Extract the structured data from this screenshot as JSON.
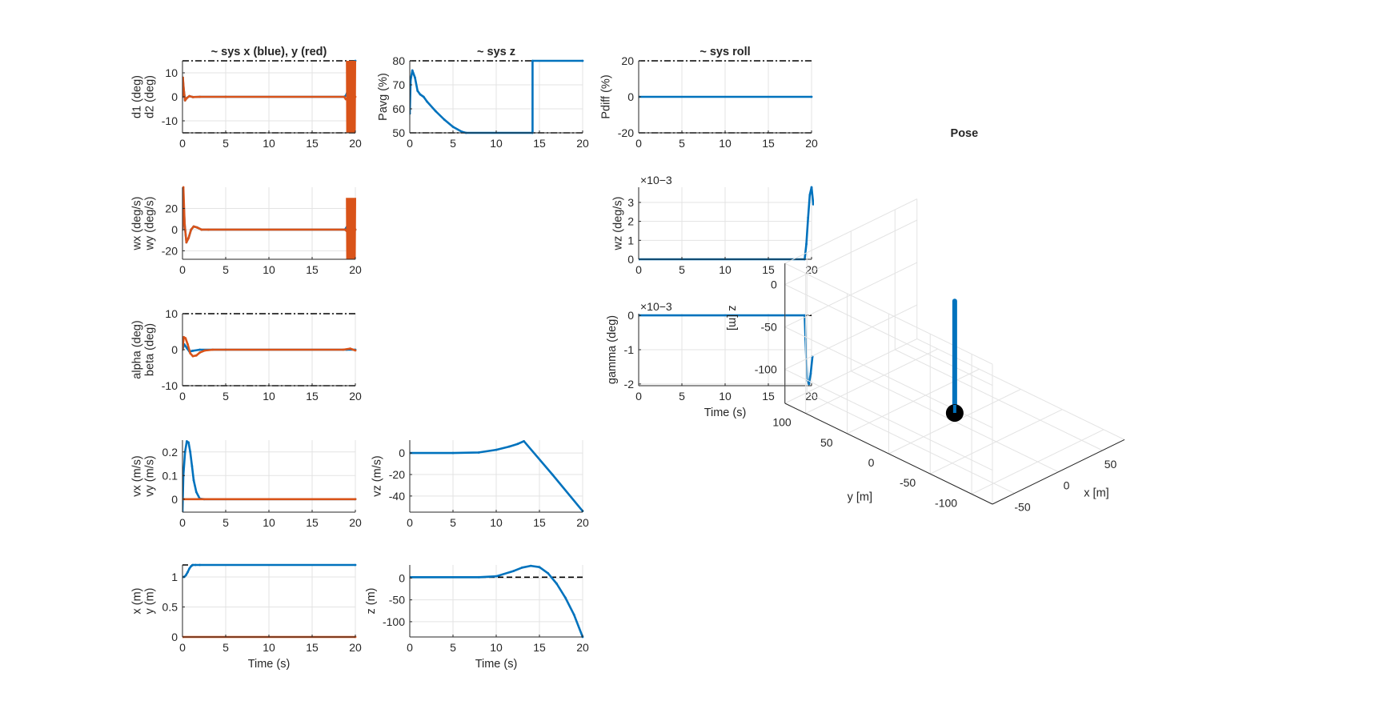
{
  "figure": {
    "background": "#ffffff",
    "colors": {
      "blue": "#0072BD",
      "red": "#D95319",
      "limit": "#000000",
      "grid": "#e3e3e3",
      "axis": "#262626"
    }
  },
  "chart_data": [
    {
      "id": "xy-angle",
      "type": "line",
      "title": "~ sys x (blue), y (red)",
      "xlabel": "",
      "ylabel": [
        "d1 (deg)",
        "d2 (deg)"
      ],
      "xlim": [
        0,
        20
      ],
      "ylim": [
        -15,
        15
      ],
      "xticks": [
        0,
        5,
        10,
        15,
        20
      ],
      "yticks": [
        -10,
        0,
        10
      ],
      "limits": [
        15,
        -15
      ],
      "series": [
        {
          "color": "#0072BD",
          "x": [
            0,
            0.05,
            0.15,
            0.3,
            0.5,
            0.8,
            1.2,
            2,
            5,
            18.7,
            18.9,
            19.3,
            20
          ],
          "y": [
            0,
            7,
            3,
            -1.5,
            -0.5,
            0.3,
            -0.1,
            0,
            0,
            0,
            0.5,
            4,
            15
          ]
        },
        {
          "color": "#D95319",
          "x": [
            0,
            0.05,
            0.15,
            0.3,
            0.5,
            0.8,
            1.2,
            2,
            5,
            18.7,
            18.9,
            19.3,
            20
          ],
          "y": [
            0,
            8,
            3,
            -1.5,
            -0.5,
            0.3,
            -0.1,
            0,
            0,
            0,
            -1,
            0,
            0
          ],
          "band": [
            19.0,
            20.0,
            -15,
            15
          ]
        }
      ]
    },
    {
      "id": "z-throttle",
      "type": "line",
      "title": "~ sys z",
      "xlabel": "",
      "ylabel": [
        "Pavg (%)"
      ],
      "xlim": [
        0,
        20
      ],
      "ylim": [
        50,
        80
      ],
      "xticks": [
        0,
        5,
        10,
        15,
        20
      ],
      "yticks": [
        50,
        60,
        70,
        80
      ],
      "limits": [
        80,
        50
      ],
      "series": [
        {
          "color": "#0072BD",
          "x": [
            0,
            0.1,
            0.3,
            0.6,
            0.9,
            1.2,
            1.6,
            2.0,
            3.0,
            4.0,
            5.0,
            6.0,
            6.5,
            14.2,
            14.2,
            20
          ],
          "y": [
            58,
            72,
            76,
            73,
            67.5,
            66,
            65,
            63,
            59,
            55.5,
            52.5,
            50.5,
            50,
            50,
            80,
            80
          ]
        }
      ]
    },
    {
      "id": "roll-throttle",
      "type": "line",
      "title": "~ sys roll",
      "xlabel": "",
      "ylabel": [
        "Pdiff (%)"
      ],
      "xlim": [
        0,
        20
      ],
      "ylim": [
        -20,
        20
      ],
      "xticks": [
        0,
        5,
        10,
        15,
        20
      ],
      "yticks": [
        -20,
        0,
        20
      ],
      "limits": [
        20,
        -20
      ],
      "series": [
        {
          "color": "#0072BD",
          "x": [
            0,
            20
          ],
          "y": [
            0,
            0
          ]
        }
      ]
    },
    {
      "id": "xy-rate",
      "type": "line",
      "title": "",
      "xlabel": "",
      "ylabel": [
        "wx (deg/s)",
        "wy (deg/s)"
      ],
      "xlim": [
        0,
        20
      ],
      "ylim": [
        -28,
        40
      ],
      "xticks": [
        0,
        5,
        10,
        15,
        20
      ],
      "yticks": [
        -20,
        0,
        20
      ],
      "series": [
        {
          "color": "#0072BD",
          "x": [
            0,
            0.1,
            0.25,
            0.45,
            0.7,
            1.0,
            1.3,
            1.7,
            2.2,
            3,
            18.8,
            19.2,
            20
          ],
          "y": [
            0,
            30,
            5,
            -12,
            -8,
            0,
            3,
            2,
            0,
            0,
            0,
            5,
            0
          ]
        },
        {
          "color": "#D95319",
          "x": [
            0,
            0.1,
            0.25,
            0.45,
            0.7,
            1.0,
            1.3,
            1.7,
            2.2,
            3,
            18.8,
            19.2,
            20
          ],
          "y": [
            0,
            40,
            5,
            -12,
            -8,
            0,
            3,
            2,
            0,
            0,
            0,
            -3,
            0
          ],
          "band": [
            19.0,
            20.0,
            -28,
            30
          ]
        }
      ]
    },
    {
      "id": "yaw-rate",
      "type": "line",
      "title": "",
      "xlabel": "",
      "ylabel": [
        "wz (deg/s)"
      ],
      "exponent": "×10−3",
      "xlim": [
        0,
        20
      ],
      "ylim": [
        0,
        0.0038
      ],
      "xticks": [
        0,
        5,
        10,
        15,
        20
      ],
      "yticks": [
        0,
        0.001,
        0.002,
        0.003
      ],
      "ytick_labels": [
        "0",
        "1",
        "2",
        "3"
      ],
      "series": [
        {
          "color": "#0072BD",
          "x": [
            0,
            19.2,
            19.4,
            19.6,
            19.8,
            20.0,
            20.2
          ],
          "y": [
            0,
            0,
            0.0008,
            0.0022,
            0.0034,
            0.0038,
            0.0029
          ]
        }
      ]
    },
    {
      "id": "incidence",
      "type": "line",
      "title": "",
      "xlabel": "",
      "ylabel": [
        "alpha (deg)",
        "beta (deg)"
      ],
      "xlim": [
        0,
        20
      ],
      "ylim": [
        -10,
        10
      ],
      "xticks": [
        0,
        5,
        10,
        15,
        20
      ],
      "yticks": [
        -10,
        0,
        10
      ],
      "limits": [
        10,
        -10
      ],
      "series": [
        {
          "color": "#0072BD",
          "x": [
            0,
            0.2,
            0.5,
            0.8,
            1.2,
            2,
            5,
            19,
            20
          ],
          "y": [
            0,
            1.5,
            0.5,
            -0.5,
            -0.3,
            0,
            0,
            0,
            0
          ]
        },
        {
          "color": "#D95319",
          "x": [
            0,
            0.15,
            0.35,
            0.6,
            0.9,
            1.2,
            1.6,
            2.0,
            2.6,
            3.5,
            18.6,
            19.4,
            20
          ],
          "y": [
            0,
            3.5,
            3.2,
            1.5,
            -1.0,
            -1.8,
            -1.6,
            -0.8,
            -0.2,
            0,
            0,
            0.3,
            -0.2
          ]
        }
      ]
    },
    {
      "id": "roll-angle",
      "type": "line",
      "title": "",
      "xlabel": "Time (s)",
      "ylabel": [
        "gamma (deg)"
      ],
      "exponent": "×10−3",
      "xlim": [
        0,
        20
      ],
      "ylim": [
        -0.00205,
        5e-05
      ],
      "xticks": [
        0,
        5,
        10,
        15,
        20
      ],
      "yticks": [
        -0.002,
        -0.001,
        0
      ],
      "ytick_labels": [
        "-2",
        "-1",
        "0"
      ],
      "limits": [
        0
      ],
      "series": [
        {
          "color": "#0072BD",
          "x": [
            0,
            19.2,
            19.3,
            19.5,
            19.7,
            19.9,
            20.1
          ],
          "y": [
            0,
            0,
            -0.0007,
            -0.0019,
            -0.002,
            -0.0017,
            -0.0012
          ]
        }
      ]
    },
    {
      "id": "xy-velocity",
      "type": "line",
      "title": "",
      "xlabel": "",
      "ylabel": [
        "vx (m/s)",
        "vy (m/s)"
      ],
      "xlim": [
        0,
        20
      ],
      "ylim": [
        -0.055,
        0.25
      ],
      "xticks": [
        0,
        5,
        10,
        15,
        20
      ],
      "yticks": [
        0,
        0.1,
        0.2
      ],
      "ytick_labels": [
        "0",
        "0.1",
        "0.2"
      ],
      "series": [
        {
          "color": "#0072BD",
          "x": [
            0,
            0.1,
            0.3,
            0.5,
            0.7,
            0.9,
            1.1,
            1.3,
            1.6,
            2.0,
            2.5,
            20
          ],
          "y": [
            -0.05,
            0.1,
            0.2,
            0.245,
            0.24,
            0.2,
            0.14,
            0.08,
            0.03,
            0.002,
            0,
            0
          ]
        },
        {
          "color": "#D95319",
          "x": [
            0,
            20
          ],
          "y": [
            0,
            0
          ]
        }
      ]
    },
    {
      "id": "z-velocity",
      "type": "line",
      "title": "",
      "xlabel": "",
      "ylabel": [
        "vz (m/s)"
      ],
      "xlim": [
        0,
        20
      ],
      "ylim": [
        -55,
        12
      ],
      "xticks": [
        0,
        5,
        10,
        15,
        20
      ],
      "yticks": [
        -40,
        -20,
        0
      ],
      "series": [
        {
          "color": "#0072BD",
          "x": [
            0,
            5,
            8,
            10,
            11.5,
            12.5,
            13.2,
            16.5,
            20
          ],
          "y": [
            0,
            0,
            0.5,
            3,
            6,
            8.5,
            11,
            -20,
            -54
          ]
        }
      ]
    },
    {
      "id": "xy-position",
      "type": "line",
      "title": "",
      "xlabel": "Time (s)",
      "ylabel": [
        "x (m)",
        "y (m)"
      ],
      "xlim": [
        0,
        20
      ],
      "ylim": [
        0,
        1.2
      ],
      "xticks": [
        0,
        5,
        10,
        15,
        20
      ],
      "yticks": [
        0,
        0.5,
        1
      ],
      "ytick_labels": [
        "0",
        "0.5",
        "1"
      ],
      "limits": [
        1.2,
        0
      ],
      "series": [
        {
          "color": "#0072BD",
          "x": [
            0,
            0.2,
            0.4,
            0.6,
            0.8,
            1.0,
            1.2,
            1.5,
            2,
            20
          ],
          "y": [
            1.0,
            1.0,
            1.03,
            1.08,
            1.14,
            1.18,
            1.2,
            1.2,
            1.2,
            1.2
          ]
        },
        {
          "color": "#D95319",
          "x": [
            0,
            20
          ],
          "y": [
            0,
            0
          ]
        }
      ]
    },
    {
      "id": "z-position",
      "type": "line",
      "title": "",
      "xlabel": "Time (s)",
      "ylabel": [
        "z (m)"
      ],
      "xlim": [
        0,
        20
      ],
      "ylim": [
        -135,
        30
      ],
      "xticks": [
        0,
        5,
        10,
        15,
        20
      ],
      "yticks": [
        -100,
        -50,
        0
      ],
      "limits": [
        2
      ],
      "series": [
        {
          "color": "#0072BD",
          "x": [
            0,
            8,
            10,
            12,
            13,
            14,
            15,
            16,
            17,
            18,
            19,
            20
          ],
          "y": [
            2,
            2,
            4,
            16,
            24,
            28,
            25,
            11,
            -13,
            -45,
            -84,
            -135
          ]
        }
      ]
    },
    {
      "id": "pose",
      "type": "scatter3d",
      "title": "Pose",
      "xlabel": "x [m]",
      "ylabel": "y [m]",
      "zlabel": "z [m]",
      "xlim": [
        -75,
        75
      ],
      "ylim": [
        -125,
        125
      ],
      "zlim": [
        -140,
        25
      ],
      "xticks": [
        -50,
        0,
        50
      ],
      "yticks": [
        -100,
        -50,
        0,
        50,
        100
      ],
      "zticks": [
        -100,
        -50,
        0
      ],
      "series": [
        {
          "color": "#0072BD",
          "x": [
            0,
            0
          ],
          "y": [
            0,
            0
          ],
          "z": [
            -128,
            2
          ]
        }
      ],
      "marker": {
        "x": 0,
        "y": 0,
        "z": -130,
        "color": "#000000"
      }
    }
  ]
}
